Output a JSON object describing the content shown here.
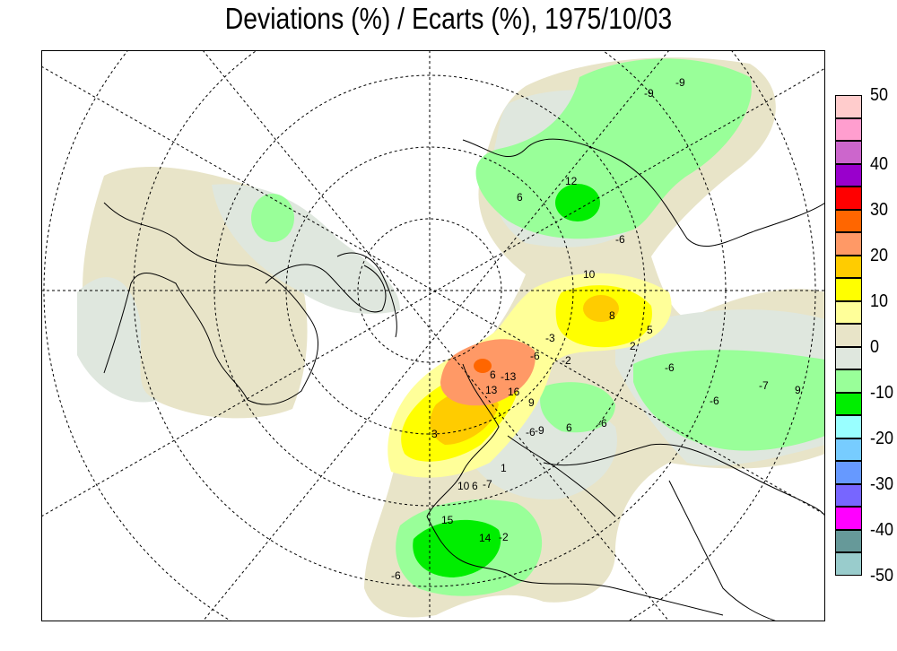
{
  "title": "Deviations (%) / Ecarts (%), 1975/10/03",
  "legend": {
    "levels": [
      {
        "label": "50",
        "color": "#ffcccc"
      },
      {
        "label": "",
        "color": "#ff9ecf"
      },
      {
        "label": "",
        "color": "#cc66cc"
      },
      {
        "label": "40",
        "color": "#9900cc"
      },
      {
        "label": "",
        "color": "#ff0000"
      },
      {
        "label": "30",
        "color": "#ff6600"
      },
      {
        "label": "",
        "color": "#ff9966"
      },
      {
        "label": "20",
        "color": "#ffcc00"
      },
      {
        "label": "",
        "color": "#ffff00"
      },
      {
        "label": "10",
        "color": "#ffff99"
      },
      {
        "label": "",
        "color": "#e8e4c8"
      },
      {
        "label": "0",
        "color": "#dfe7de"
      },
      {
        "label": "",
        "color": "#99ff99"
      },
      {
        "label": "-10",
        "color": "#00ee00"
      },
      {
        "label": "",
        "color": "#99ffff"
      },
      {
        "label": "-20",
        "color": "#77ccff"
      },
      {
        "label": "",
        "color": "#6699ff"
      },
      {
        "label": "-30",
        "color": "#7766ff"
      },
      {
        "label": "",
        "color": "#ff00ff"
      },
      {
        "label": "-40",
        "color": "#669999"
      },
      {
        "label": "",
        "color": "#99cccc"
      },
      {
        "label": "-50",
        "color": ""
      }
    ]
  },
  "contour_labels": [
    "-9",
    "-9",
    "12",
    "6",
    "-6",
    "-2",
    "10",
    "8",
    "-3",
    "2",
    "6",
    "5",
    "9",
    "13",
    "-13",
    "16",
    "3",
    "-9",
    "6",
    "-6",
    "-6",
    "-7",
    "1",
    "10",
    "6",
    "-7",
    "15",
    "14",
    "-2",
    "-6",
    "-6",
    "-6",
    "-6",
    "9"
  ]
}
